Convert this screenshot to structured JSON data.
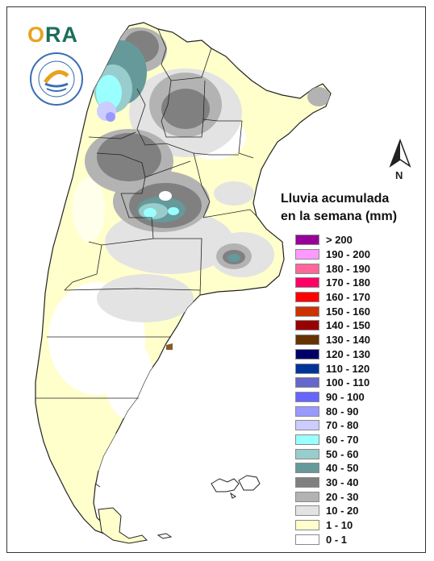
{
  "logo": {
    "text_prefix": "O",
    "text_rest": "RA"
  },
  "north_arrow": {
    "label": "N"
  },
  "legend": {
    "title_line1": "Lluvia acumulada",
    "title_line2": "en la semana (mm)",
    "items": [
      {
        "label": "> 200",
        "color": "#990099"
      },
      {
        "label": "190 - 200",
        "color": "#ff99ff"
      },
      {
        "label": "180 - 190",
        "color": "#ff6699"
      },
      {
        "label": "170 - 180",
        "color": "#ff0066"
      },
      {
        "label": "160 - 170",
        "color": "#ff0000"
      },
      {
        "label": "150 - 160",
        "color": "#cc3300"
      },
      {
        "label": "140 - 150",
        "color": "#990000"
      },
      {
        "label": "130 - 140",
        "color": "#663300"
      },
      {
        "label": "120 - 130",
        "color": "#000066"
      },
      {
        "label": "110 - 120",
        "color": "#003399"
      },
      {
        "label": "100 - 110",
        "color": "#6666cc"
      },
      {
        "label": "90 - 100",
        "color": "#6666ff"
      },
      {
        "label": "80 - 90",
        "color": "#9999ff"
      },
      {
        "label": "70 - 80",
        "color": "#ccccff"
      },
      {
        "label": "60 - 70",
        "color": "#99ffff"
      },
      {
        "label": "50 - 60",
        "color": "#99cccc"
      },
      {
        "label": "40 - 50",
        "color": "#669999"
      },
      {
        "label": "30 - 40",
        "color": "#808080"
      },
      {
        "label": "20 - 30",
        "color": "#b3b3b3"
      },
      {
        "label": "10 - 20",
        "color": "#e3e3e3"
      },
      {
        "label": "1 - 10",
        "color": "#ffffcc"
      },
      {
        "label": "0 - 1",
        "color": "#ffffff"
      }
    ]
  }
}
